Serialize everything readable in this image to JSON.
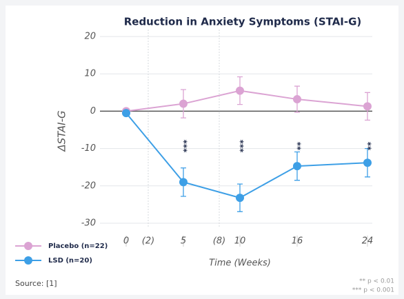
{
  "chart_data": {
    "type": "line",
    "title": "Reduction in Anxiety Symptoms (STAI-G)",
    "x_label": "Time (Weeks)",
    "y_label": "ΔSTAI-G",
    "categories": [
      "0",
      "5",
      "10",
      "16",
      "24"
    ],
    "x_markers": [
      "(2)",
      "(8)"
    ],
    "ylim": [
      -30,
      20
    ],
    "yticks": [
      20,
      10,
      0,
      -10,
      -20,
      -30
    ],
    "grid": true,
    "series": [
      {
        "name": "Placebo (n=22)",
        "color": "#dba3d3",
        "values": [
          0,
          2,
          5.5,
          3.2,
          1.3
        ],
        "errors": [
          0,
          3.8,
          3.7,
          3.5,
          3.7
        ]
      },
      {
        "name": "LSD (n=20)",
        "color": "#3d9fe6",
        "values": [
          -0.5,
          -19,
          -23.2,
          -14.7,
          -13.8
        ],
        "errors": [
          0,
          3.8,
          3.7,
          3.8,
          3.8
        ]
      }
    ],
    "significance": [
      null,
      "***",
      "***",
      "**",
      "**"
    ],
    "footnotes": [
      "** p < 0.01",
      "*** p < 0.001"
    ],
    "source": "Source: [1]"
  }
}
